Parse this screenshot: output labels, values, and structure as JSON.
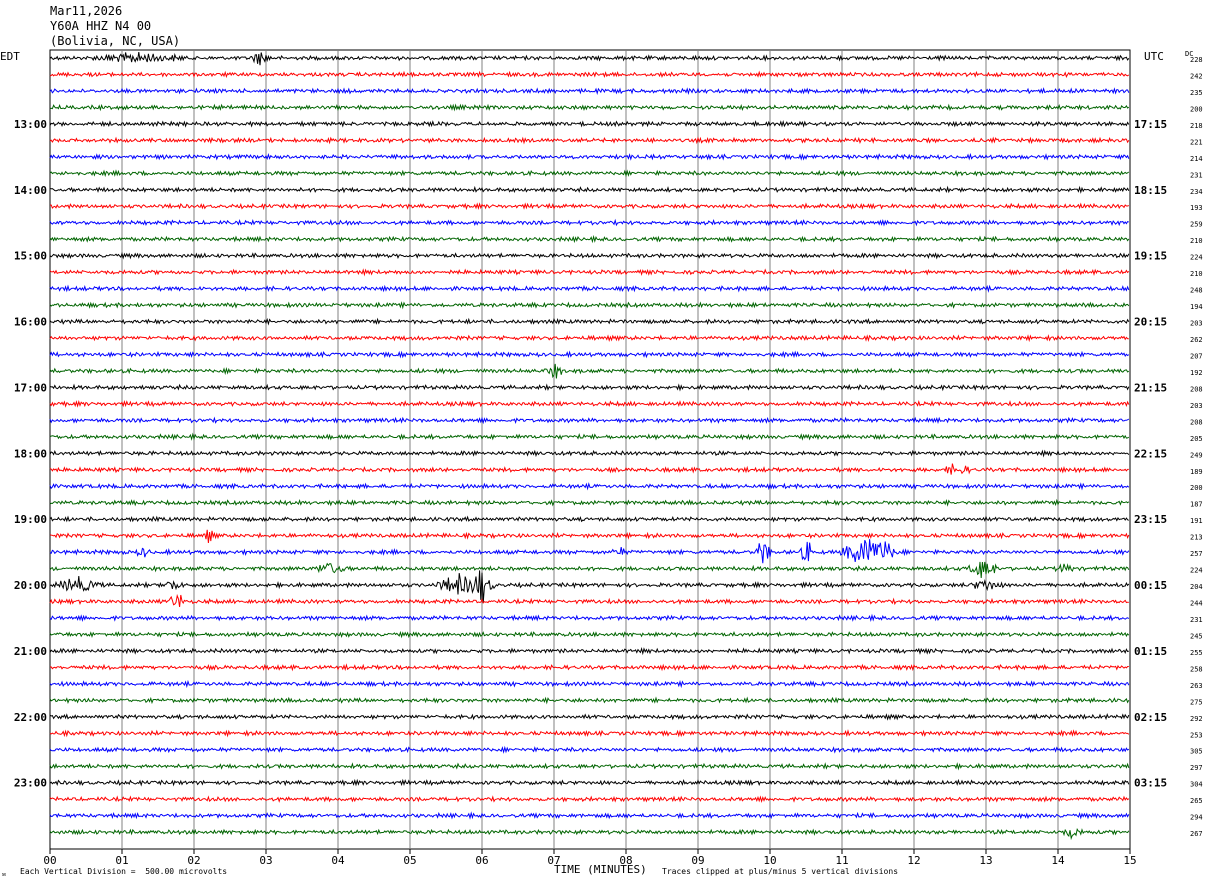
{
  "header": {
    "date": "Mar11,2026",
    "station": "Y60A HHZ N4 00",
    "location": "(Bolivia, NC, USA)"
  },
  "labels": {
    "left_tz": "EDT",
    "right_tz": "UTC",
    "dc": "DC",
    "xlabel": "TIME (MINUTES)",
    "vertical_division": "Each Vertical Division =  500.00 microvolts",
    "clip_note": "Traces clipped at plus/minus 5 vertical divisions"
  },
  "colors": {
    "cycle": [
      "#000000",
      "#ff0000",
      "#0000ff",
      "#006400"
    ],
    "grid": "#808080"
  },
  "chart_data": {
    "type": "seismogram",
    "x_ticks": [
      "00",
      "01",
      "02",
      "03",
      "04",
      "05",
      "06",
      "07",
      "08",
      "09",
      "10",
      "11",
      "12",
      "13",
      "14",
      "15"
    ],
    "xlim": [
      0,
      15
    ],
    "minutes_per_trace": 15,
    "trace_count": 48,
    "edt_hour_labels": [
      "13:00",
      "14:00",
      "15:00",
      "16:00",
      "17:00",
      "18:00",
      "19:00",
      "20:00",
      "21:00",
      "22:00",
      "23:00"
    ],
    "utc_hour_labels": [
      "17:15",
      "18:15",
      "19:15",
      "20:15",
      "21:15",
      "22:15",
      "23:15",
      "00:15",
      "01:15",
      "02:15",
      "03:15"
    ],
    "dc_offsets": [
      228,
      242,
      235,
      200,
      218,
      221,
      214,
      231,
      234,
      193,
      259,
      210,
      224,
      210,
      248,
      194,
      203,
      262,
      207,
      192,
      208,
      203,
      208,
      205,
      249,
      189,
      200,
      187,
      191,
      213,
      257,
      224,
      204,
      244,
      231,
      245,
      255,
      258,
      263,
      275,
      292,
      253,
      305,
      297,
      304,
      265,
      294,
      267
    ],
    "events": [
      {
        "trace": 0,
        "minute": 1.2,
        "amp": 2.0,
        "dur": 0.7
      },
      {
        "trace": 0,
        "minute": 2.9,
        "amp": 2.5,
        "dur": 0.15
      },
      {
        "trace": 19,
        "minute": 7.0,
        "amp": 2.5,
        "dur": 0.15
      },
      {
        "trace": 25,
        "minute": 12.6,
        "amp": 2.5,
        "dur": 0.2
      },
      {
        "trace": 29,
        "minute": 2.2,
        "amp": 2.0,
        "dur": 0.1
      },
      {
        "trace": 30,
        "minute": 1.3,
        "amp": 2.0,
        "dur": 0.12
      },
      {
        "trace": 30,
        "minute": 7.9,
        "amp": 2.0,
        "dur": 0.12
      },
      {
        "trace": 30,
        "minute": 9.9,
        "amp": 6.0,
        "dur": 0.12
      },
      {
        "trace": 30,
        "minute": 10.5,
        "amp": 5.0,
        "dur": 0.1
      },
      {
        "trace": 30,
        "minute": 11.3,
        "amp": 7.0,
        "dur": 0.35
      },
      {
        "trace": 30,
        "minute": 11.6,
        "amp": 5.0,
        "dur": 0.2
      },
      {
        "trace": 31,
        "minute": 3.9,
        "amp": 3.0,
        "dur": 0.25
      },
      {
        "trace": 31,
        "minute": 12.95,
        "amp": 4.0,
        "dur": 0.25
      },
      {
        "trace": 31,
        "minute": 14.1,
        "amp": 2.0,
        "dur": 0.15
      },
      {
        "trace": 32,
        "minute": 0.4,
        "amp": 3.5,
        "dur": 0.35
      },
      {
        "trace": 32,
        "minute": 1.7,
        "amp": 2.5,
        "dur": 0.15
      },
      {
        "trace": 32,
        "minute": 5.7,
        "amp": 4.0,
        "dur": 0.4
      },
      {
        "trace": 32,
        "minute": 6.0,
        "amp": 6.0,
        "dur": 0.2
      },
      {
        "trace": 32,
        "minute": 13.0,
        "amp": 2.5,
        "dur": 0.25
      },
      {
        "trace": 33,
        "minute": 1.75,
        "amp": 4.0,
        "dur": 0.15
      },
      {
        "trace": 47,
        "minute": 14.2,
        "amp": 2.5,
        "dur": 0.15
      }
    ]
  }
}
